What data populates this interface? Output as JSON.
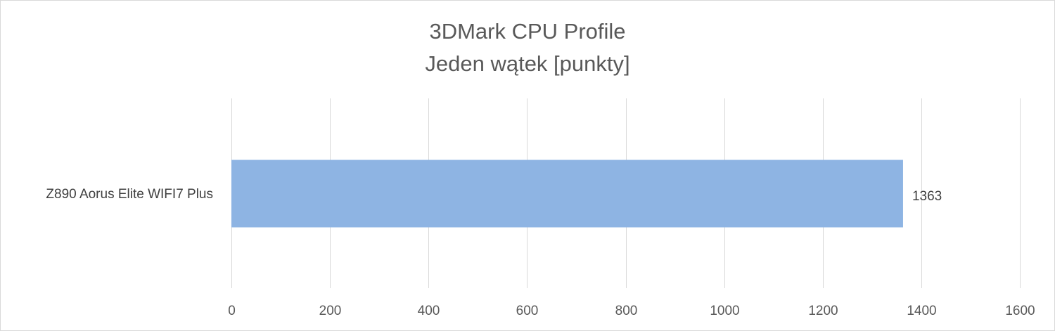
{
  "chart_data": {
    "type": "bar",
    "orientation": "horizontal",
    "title": "3DMark CPU Profile",
    "subtitle": "Jeden wątek [punkty]",
    "categories": [
      "Z890 Aorus Elite WIFI7 Plus"
    ],
    "series": [
      {
        "values": [
          1363
        ],
        "color": "#8eb4e3"
      }
    ],
    "data_labels": [
      "1363"
    ],
    "xlim": [
      0,
      1600
    ],
    "x_ticks": [
      0,
      200,
      400,
      600,
      800,
      1000,
      1200,
      1400,
      1600
    ],
    "x_tick_labels": [
      "0",
      "200",
      "400",
      "600",
      "800",
      "1000",
      "1200",
      "1400",
      "1600"
    ],
    "grid": true,
    "legend": "none",
    "gridline_color": "#d9d9d9",
    "text_color": "#595959"
  }
}
